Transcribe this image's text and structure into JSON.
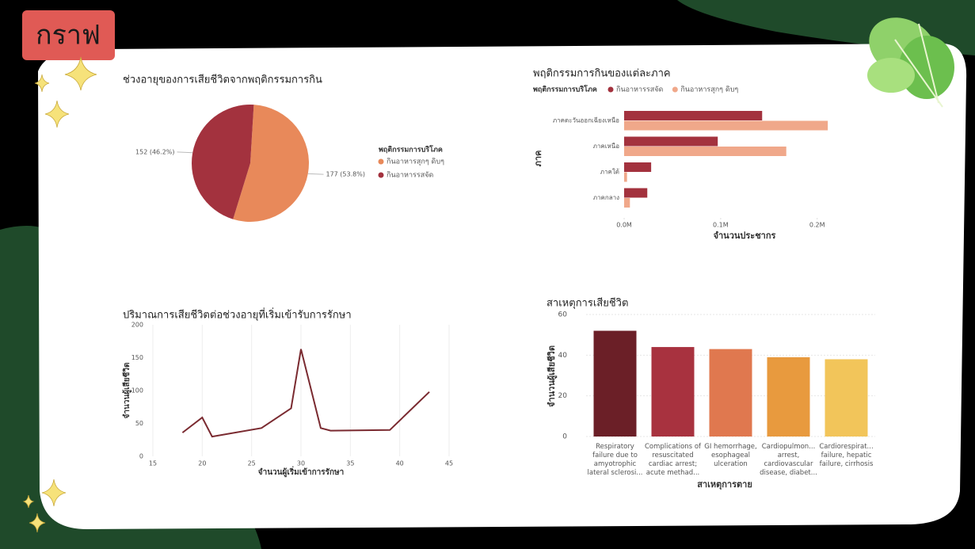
{
  "header": {
    "title": "กราฟ"
  },
  "chart_data": [
    {
      "type": "pie",
      "title": "ช่วงอายุของการเสียชีวิตจากพฤติกรรมการกิน",
      "legend_title": "พฤติกรรมการบริโภค",
      "categories": [
        "กินอาหารสุกๆ ดิบๆ",
        "กินอาหารรสจัด"
      ],
      "values": [
        177,
        152
      ],
      "value_labels": [
        "177 (53.8%)",
        "152 (46.2%)"
      ],
      "colors": [
        "#e8895a",
        "#a3323e"
      ],
      "legend": "right"
    },
    {
      "type": "bar",
      "orientation": "horizontal",
      "title": "พฤติกรรมการกินของแต่ละภาค",
      "legend_title": "พฤติกรรมการบริโภค",
      "legend": "top",
      "categories": [
        "ภาคตะวันออกเฉียงเหนือ",
        "ภาคเหนือ",
        "ภาคใต้",
        "ภาคกลาง"
      ],
      "series": [
        {
          "name": "กินอาหารรสจัด",
          "color": "#a3323e",
          "values": [
            143000,
            97000,
            28000,
            24000
          ]
        },
        {
          "name": "กินอาหารสุกๆ ดิบๆ",
          "color": "#f0a88a",
          "values": [
            211000,
            168000,
            3000,
            6000
          ]
        }
      ],
      "xlim": [
        0,
        215000
      ],
      "xticks": [
        {
          "value": 0,
          "label": "0.0M"
        },
        {
          "value": 100000,
          "label": "0.1M"
        },
        {
          "value": 200000,
          "label": "0.2M"
        }
      ],
      "x_label": "จำนวนประชากร",
      "y_label": "ภาค"
    },
    {
      "type": "line",
      "title": "ปริมาณการเสียชีวิตต่อช่วงอายุที่เริ่มเข้ารับการรักษา",
      "x_label": "จำนวนผู้เริ่มเข้าการรักษา",
      "y_label": "จำนวนผู้เสียชีวิต",
      "x": [
        18,
        20,
        21,
        26,
        29,
        30,
        32,
        33,
        39,
        43
      ],
      "values": [
        36,
        59,
        30,
        43,
        73,
        163,
        43,
        39,
        40,
        98
      ],
      "color": "#7a2a30",
      "xlim": [
        15,
        45
      ],
      "xticks": [
        15,
        20,
        25,
        30,
        35,
        40,
        45
      ],
      "ylim": [
        0,
        200
      ],
      "yticks": [
        0,
        50,
        100,
        150,
        200
      ],
      "grid": true
    },
    {
      "type": "bar",
      "orientation": "vertical",
      "title": "สาเหตุการเสียชีวิต",
      "x_label": "สาเหตุการตาย",
      "y_label": "จำนวนผู้เสียชีวิต",
      "categories": [
        "Respiratory failure due to amyotrophic lateral sclerosi...",
        "Complications of resuscitated cardiac arrest; acute methad...",
        "GI hemorrhage, esophageal ulceration",
        "Cardiopulmon... arrest, cardiovascular disease, diabet...",
        "Cardiorespirat... failure, hepatic failure, cirrhosis"
      ],
      "values": [
        52,
        44,
        43,
        39,
        38
      ],
      "colors": [
        "#6b1f27",
        "#a8323f",
        "#e0784f",
        "#e89a3e",
        "#f2c55a"
      ],
      "ylim": [
        0,
        60
      ],
      "yticks": [
        0,
        20,
        40,
        60
      ],
      "grid": true
    }
  ]
}
